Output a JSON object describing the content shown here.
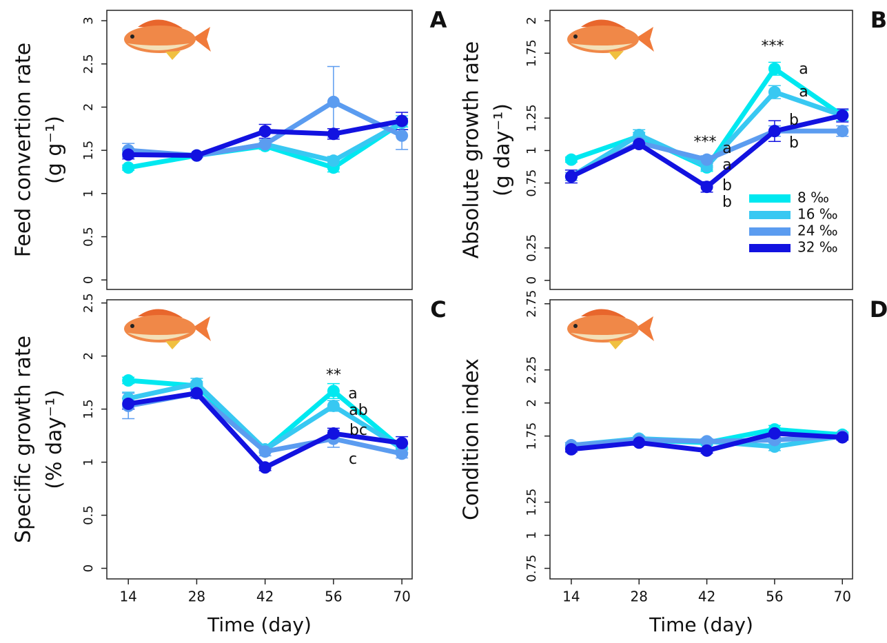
{
  "chart_data": [
    {
      "type": "line",
      "panel": "A",
      "ylabel": [
        "Feed convertion rate",
        "(g g⁻¹)"
      ],
      "x": [
        14,
        28,
        42,
        56,
        70
      ],
      "xlim": [
        9.6,
        72.1
      ],
      "ylim": [
        -0.11,
        3.12
      ],
      "yticks": [
        0,
        0.5,
        1,
        1.5,
        2,
        2.5,
        3
      ],
      "series": [
        {
          "color": "#00e8f0",
          "values": [
            1.3,
            1.44,
            1.55,
            1.3,
            1.82
          ],
          "errors": [
            0.03,
            0.02,
            0.04,
            0.05,
            0.05
          ]
        },
        {
          "color": "#38c8f2",
          "values": [
            1.47,
            1.44,
            1.57,
            1.38,
            1.82
          ],
          "errors": [
            0.05,
            0.02,
            0.05,
            0.05,
            0.08
          ]
        },
        {
          "color": "#5b9cf0",
          "values": [
            1.5,
            1.44,
            1.57,
            2.06,
            1.67
          ],
          "errors": [
            0.08,
            0.02,
            0.05,
            0.41,
            0.16
          ]
        },
        {
          "color": "#1212e0",
          "values": [
            1.45,
            1.44,
            1.72,
            1.69,
            1.84
          ],
          "errors": [
            0.05,
            0.02,
            0.08,
            0.06,
            0.1
          ]
        }
      ]
    },
    {
      "type": "line",
      "panel": "B",
      "ylabel": [
        "Absolute growth rate",
        "(g day⁻¹)"
      ],
      "x": [
        14,
        28,
        42,
        56,
        70
      ],
      "xlim": [
        9.6,
        72.1
      ],
      "ylim": [
        -0.07,
        2.08
      ],
      "yticks": [
        0,
        0.25,
        0.75,
        1,
        1.25,
        1.75,
        2
      ],
      "legend": "lower right",
      "annotations": [
        "***",
        "a",
        "a",
        "b",
        "b",
        "***",
        "a",
        "a",
        "b",
        "b"
      ],
      "series": [
        {
          "name": "8 ‰",
          "color": "#00e8f0",
          "values": [
            0.93,
            1.11,
            0.87,
            1.63,
            1.27
          ],
          "errors": [
            0.02,
            0.03,
            0.03,
            0.05,
            0.04
          ]
        },
        {
          "name": "16 ‰",
          "color": "#38c8f2",
          "values": [
            0.8,
            1.12,
            0.88,
            1.45,
            1.27
          ],
          "errors": [
            0.03,
            0.04,
            0.03,
            0.05,
            0.04
          ]
        },
        {
          "name": "24 ‰",
          "color": "#5b9cf0",
          "values": [
            0.8,
            1.06,
            0.93,
            1.15,
            1.15
          ],
          "errors": [
            0.03,
            0.03,
            0.03,
            0.04,
            0.04
          ]
        },
        {
          "name": "32 ‰",
          "color": "#1212e0",
          "values": [
            0.8,
            1.05,
            0.72,
            1.15,
            1.27
          ],
          "errors": [
            0.05,
            0.03,
            0.04,
            0.08,
            0.05
          ]
        }
      ]
    },
    {
      "type": "line",
      "panel": "C",
      "ylabel": [
        "Specific growth rate",
        "(% day⁻¹)"
      ],
      "xlabel": "Time (day)",
      "x": [
        14,
        28,
        42,
        56,
        70
      ],
      "xlim": [
        9.6,
        72.1
      ],
      "xticks": [
        14,
        28,
        42,
        56,
        70
      ],
      "ylim": [
        -0.1,
        2.53
      ],
      "yticks": [
        0,
        0.5,
        1,
        1.5,
        2,
        2.5
      ],
      "annotations": [
        "**",
        "a",
        "ab",
        "bc",
        "c"
      ],
      "series": [
        {
          "color": "#00e8f0",
          "values": [
            1.77,
            1.72,
            1.12,
            1.67,
            1.13
          ],
          "errors": [
            0.03,
            0.04,
            0.03,
            0.07,
            0.04
          ]
        },
        {
          "color": "#38c8f2",
          "values": [
            1.6,
            1.74,
            1.12,
            1.53,
            1.13
          ],
          "errors": [
            0.06,
            0.05,
            0.03,
            0.05,
            0.04
          ]
        },
        {
          "color": "#5b9cf0",
          "values": [
            1.53,
            1.65,
            1.1,
            1.22,
            1.08
          ],
          "errors": [
            0.12,
            0.05,
            0.04,
            0.08,
            0.04
          ]
        },
        {
          "color": "#1212e0",
          "values": [
            1.55,
            1.65,
            0.95,
            1.27,
            1.18
          ],
          "errors": [
            0.05,
            0.04,
            0.03,
            0.05,
            0.06
          ]
        }
      ]
    },
    {
      "type": "line",
      "panel": "D",
      "ylabel": [
        "Condition index"
      ],
      "xlabel": "Time (day)",
      "x": [
        14,
        28,
        42,
        56,
        70
      ],
      "xlim": [
        9.6,
        72.1
      ],
      "xticks": [
        14,
        28,
        42,
        56,
        70
      ],
      "ylim": [
        0.67,
        2.78
      ],
      "yticks": [
        0.75,
        1,
        1.25,
        1.75,
        2,
        2.25,
        2.75
      ],
      "series": [
        {
          "color": "#00e8f0",
          "values": [
            1.68,
            1.72,
            1.7,
            1.8,
            1.76
          ],
          "errors": [
            0.02,
            0.02,
            0.02,
            0.03,
            0.02
          ]
        },
        {
          "color": "#38c8f2",
          "values": [
            1.68,
            1.73,
            1.71,
            1.67,
            1.75
          ],
          "errors": [
            0.02,
            0.02,
            0.02,
            0.03,
            0.02
          ]
        },
        {
          "color": "#5b9cf0",
          "values": [
            1.68,
            1.72,
            1.71,
            1.72,
            1.75
          ],
          "errors": [
            0.02,
            0.02,
            0.02,
            0.03,
            0.02
          ]
        },
        {
          "color": "#1212e0",
          "values": [
            1.65,
            1.7,
            1.64,
            1.77,
            1.74
          ],
          "errors": [
            0.02,
            0.02,
            0.02,
            0.03,
            0.02
          ]
        }
      ]
    }
  ]
}
